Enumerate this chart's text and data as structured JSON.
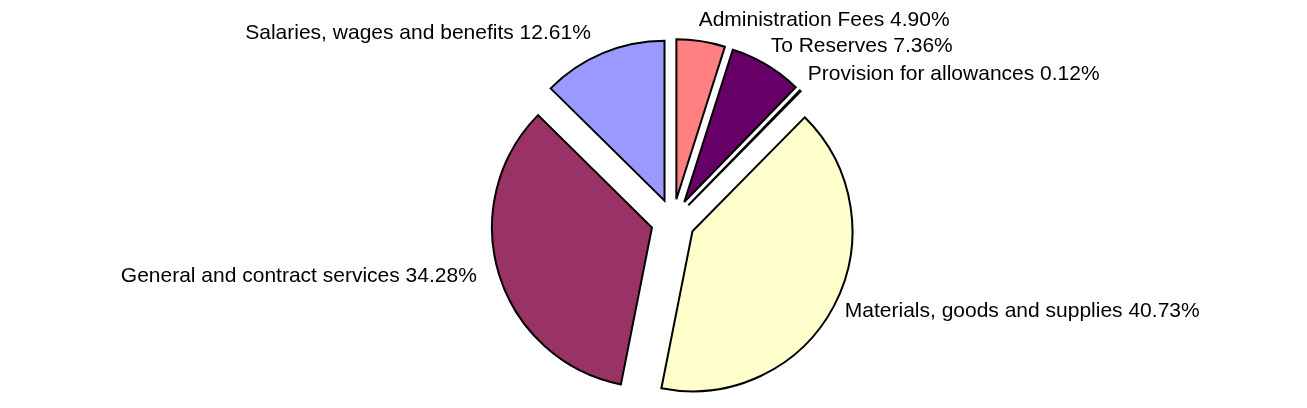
{
  "chart_data": {
    "type": "pie",
    "categories": [
      "Administration Fees",
      "To Reserves",
      "Provision for allowances",
      "Materials, goods and supplies",
      "General and contract services",
      "Salaries, wages and benefits"
    ],
    "values": [
      4.9,
      7.36,
      0.12,
      40.73,
      34.28,
      12.61
    ],
    "value_labels": [
      "4.90%",
      "7.36%",
      "0.12%",
      "40.73%",
      "34.28%",
      "12.61%"
    ],
    "colors": [
      "#ff8080",
      "#660066",
      "#ccffff",
      "#ffffcc",
      "#993366",
      "#9999ff"
    ]
  }
}
